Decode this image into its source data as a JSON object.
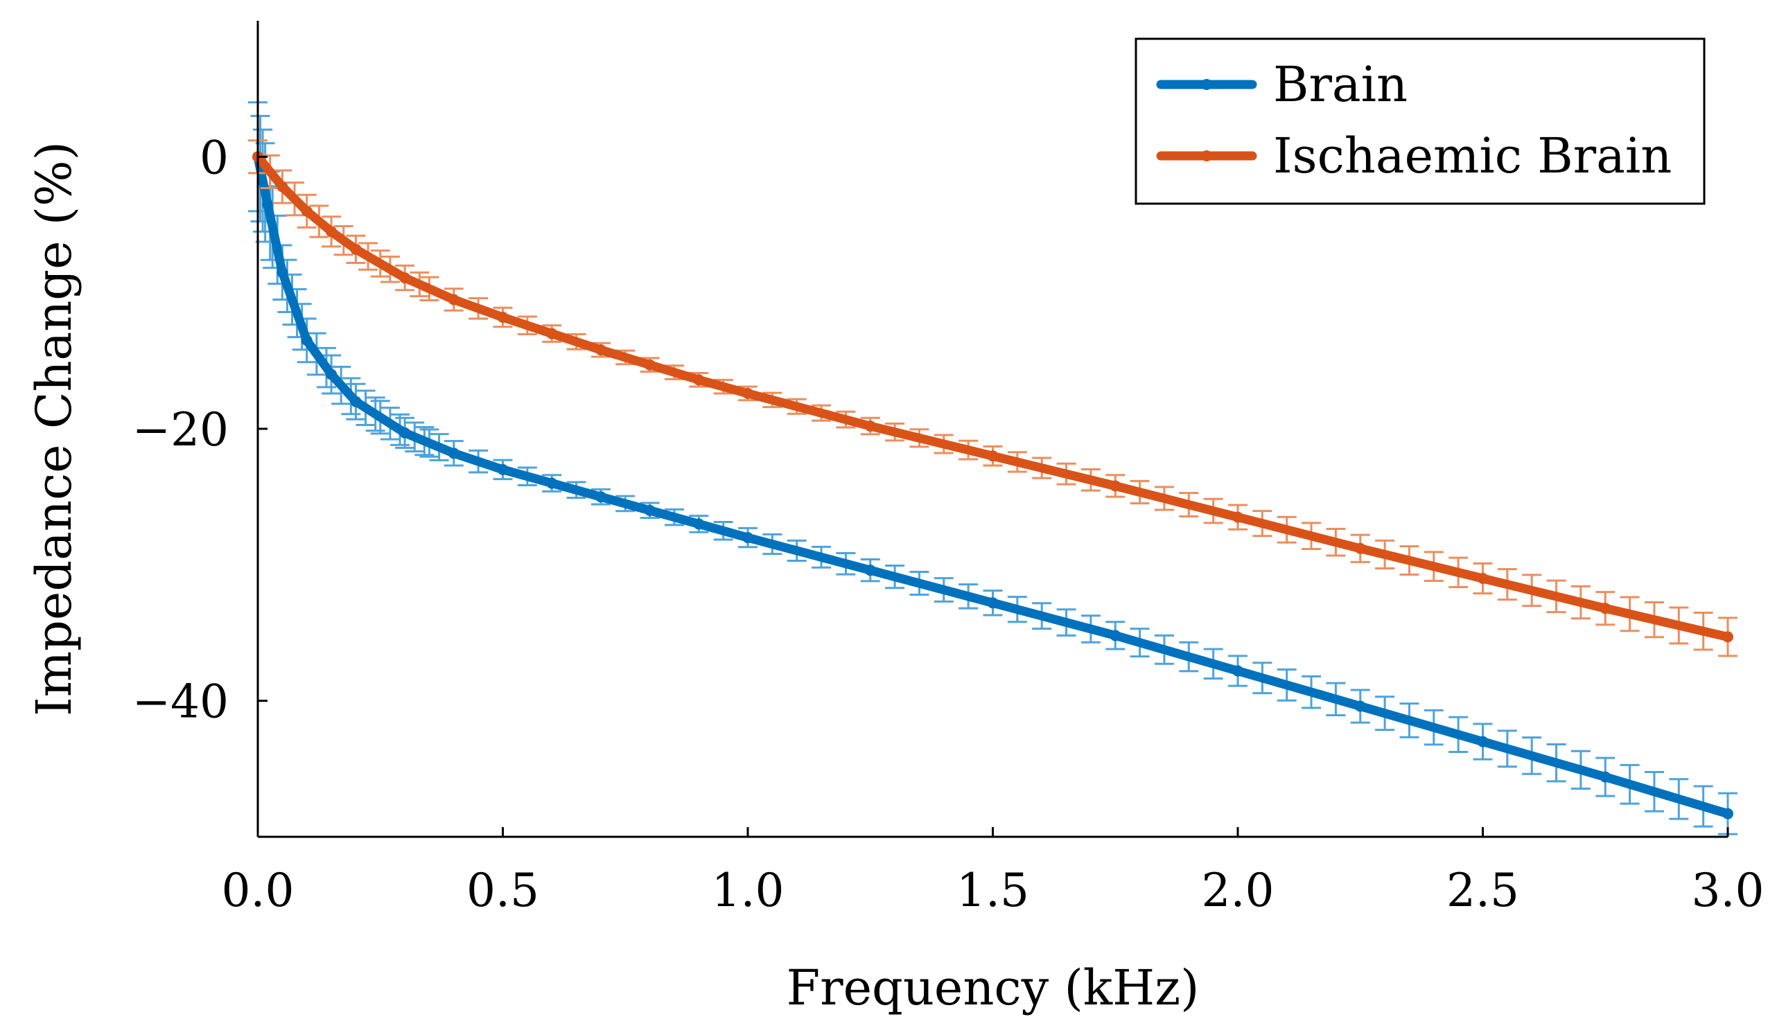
{
  "chart_data": {
    "type": "line",
    "title": "",
    "xlabel": "Frequency (kHz)",
    "ylabel": "Impedance Change (%)",
    "xlim": [
      0,
      3
    ],
    "ylim": [
      -50,
      10
    ],
    "xticks": [
      0.0,
      0.5,
      1.0,
      1.5,
      2.0,
      2.5,
      3.0
    ],
    "xtick_labels": [
      "0.0",
      "0.5",
      "1.0",
      "1.5",
      "2.0",
      "2.5",
      "3.0"
    ],
    "yticks": [
      0,
      -20,
      -40
    ],
    "ytick_labels": [
      "0",
      "−20",
      "−40"
    ],
    "legend_position": "top-right",
    "grid": false,
    "error_bars": true,
    "series": [
      {
        "name": "Brain",
        "color": "#0072BD",
        "errorbar_color": "#4DA3DB",
        "x": [
          0.0,
          0.02,
          0.05,
          0.1,
          0.15,
          0.2,
          0.3,
          0.4,
          0.5,
          0.6,
          0.7,
          0.8,
          0.9,
          1.0,
          1.25,
          1.5,
          1.75,
          2.0,
          2.25,
          2.5,
          2.75,
          3.0
        ],
        "y": [
          0.0,
          -3.5,
          -8.5,
          -13.5,
          -16.0,
          -18.0,
          -20.3,
          -21.8,
          -23.0,
          -24.0,
          -25.0,
          -26.0,
          -27.0,
          -28.0,
          -30.4,
          -32.8,
          -35.2,
          -37.8,
          -40.4,
          -43.0,
          -45.6,
          -48.3
        ],
        "err": [
          4.0,
          3.5,
          2.0,
          1.6,
          1.4,
          1.3,
          1.1,
          0.9,
          0.7,
          0.6,
          0.55,
          0.55,
          0.6,
          0.7,
          0.8,
          0.9,
          1.0,
          1.1,
          1.2,
          1.3,
          1.4,
          1.5
        ]
      },
      {
        "name": "Ischaemic Brain",
        "color": "#D95319",
        "errorbar_color": "#EB8E5E",
        "x": [
          0.0,
          0.05,
          0.1,
          0.15,
          0.2,
          0.3,
          0.4,
          0.5,
          0.6,
          0.7,
          0.8,
          0.9,
          1.0,
          1.25,
          1.5,
          1.75,
          2.0,
          2.25,
          2.5,
          2.75,
          3.0
        ],
        "y": [
          0.0,
          -2.2,
          -4.0,
          -5.5,
          -6.8,
          -8.9,
          -10.5,
          -11.8,
          -13.0,
          -14.2,
          -15.3,
          -16.4,
          -17.4,
          -19.8,
          -22.0,
          -24.2,
          -26.5,
          -28.8,
          -31.0,
          -33.2,
          -35.3
        ],
        "err": [
          1.2,
          1.2,
          1.2,
          1.1,
          1.0,
          0.9,
          0.8,
          0.7,
          0.6,
          0.5,
          0.5,
          0.5,
          0.5,
          0.6,
          0.7,
          0.8,
          0.9,
          1.0,
          1.1,
          1.2,
          1.4
        ]
      }
    ]
  }
}
